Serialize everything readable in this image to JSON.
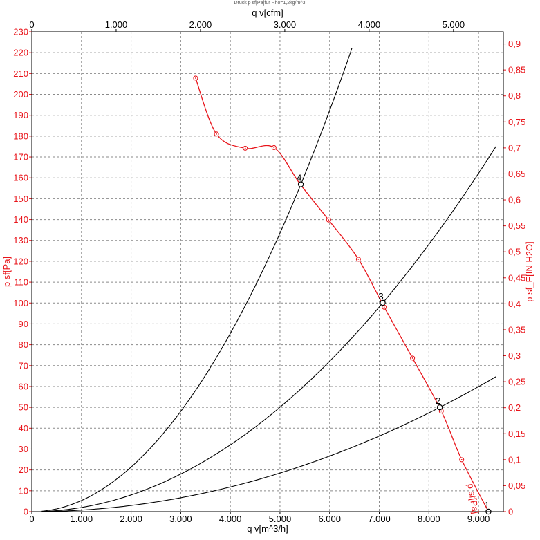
{
  "chart_data": {
    "type": "line",
    "title": "Druck p sf[Pa]für Rho=1,2kg/m^3",
    "x_axis": {
      "label": "q v[m^3/h]",
      "lim": [
        0,
        9500
      ],
      "ticks": [
        0,
        1000,
        2000,
        3000,
        4000,
        5000,
        6000,
        7000,
        8000,
        9000
      ],
      "tick_labels": [
        "0",
        "1.000",
        "2.000",
        "3.000",
        "4.000",
        "5.000",
        "6.000",
        "7.000",
        "8.000",
        "9.000"
      ]
    },
    "x2_axis": {
      "label": "q v[cfm]",
      "ticks": [
        0,
        1000,
        2000,
        3000,
        4000,
        5000
      ],
      "tick_labels": [
        "0",
        "1.000",
        "2.000",
        "3.000",
        "4.000",
        "5.000"
      ],
      "factor_m3h_per_cfm": 1.699
    },
    "y_axis": {
      "label": "p sf[Pa]",
      "lim": [
        0,
        230
      ],
      "ticks": [
        0,
        10,
        20,
        30,
        40,
        50,
        60,
        70,
        80,
        90,
        100,
        110,
        120,
        130,
        140,
        150,
        160,
        170,
        180,
        190,
        200,
        210,
        220,
        230
      ],
      "tick_labels": [
        "0",
        "10",
        "20",
        "30",
        "40",
        "50",
        "60",
        "70",
        "80",
        "90",
        "100",
        "110",
        "120",
        "130",
        "140",
        "150",
        "160",
        "170",
        "180",
        "190",
        "200",
        "210",
        "220",
        "230"
      ]
    },
    "y2_axis": {
      "label": "p sf_E[IN H2O]",
      "ticks": [
        0,
        0.05,
        0.1,
        0.15,
        0.2,
        0.25,
        0.3,
        0.35,
        0.4,
        0.45,
        0.5,
        0.55,
        0.6,
        0.65,
        0.7,
        0.75,
        0.8,
        0.85,
        0.9
      ],
      "tick_labels": [
        "0",
        "0,05",
        "0,1",
        "0,15",
        "0,2",
        "0,25",
        "0,3",
        "0,35",
        "0,4",
        "0,45",
        "0,5",
        "0,55",
        "0,6",
        "0,65",
        "0,7",
        "0,75",
        "0,8",
        "0,85",
        "0,9"
      ],
      "pa_per_unit": 249.089
    },
    "grid": true,
    "fan_curve": {
      "name": "p sf[Pa]",
      "color": "#e8141a",
      "x": [
        3300,
        3720,
        4300,
        4880,
        5400,
        5980,
        6580,
        7100,
        7670,
        8250,
        8660,
        9200
      ],
      "y": [
        207.8,
        181,
        174.2,
        174.5,
        157.2,
        139.8,
        121,
        98,
        73.6,
        48.2,
        24.9,
        0
      ],
      "marker_indices": [
        0,
        1,
        2,
        3,
        5,
        6,
        7,
        8,
        9,
        10
      ]
    },
    "system_curves": [
      {
        "k_pa_per_m3h_sq": 5.3406e-06,
        "x_max": 6450,
        "color": "#000000"
      },
      {
        "k_pa_per_m3h_sq": 2.002e-06,
        "x_max": 9380,
        "color": "#000000"
      },
      {
        "k_pa_per_m3h_sq": 7.3975e-07,
        "x_max": 9380,
        "color": "#000000"
      }
    ],
    "operating_points": [
      {
        "label": "1",
        "x": 9200,
        "y": 0
      },
      {
        "label": "2",
        "x": 8220,
        "y": 50
      },
      {
        "label": "3",
        "x": 7070,
        "y": 100.1
      },
      {
        "label": "4",
        "x": 5420,
        "y": 156.9
      }
    ]
  }
}
